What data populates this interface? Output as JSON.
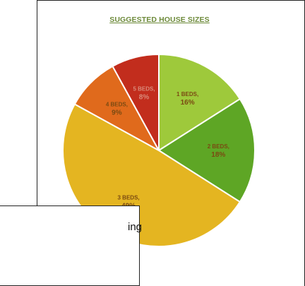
{
  "chart_data": {
    "type": "pie",
    "title": "SUGGESTED HOUSE SIZES",
    "slices": [
      {
        "label": "1 BEDS,",
        "pct_label": "16%",
        "value": 16,
        "color": "#9ec93b"
      },
      {
        "label": "2 BEDS,",
        "pct_label": "18%",
        "value": 18,
        "color": "#5ea625"
      },
      {
        "label": "3 BEDS,",
        "pct_label": "49%",
        "value": 49,
        "color": "#e4b521"
      },
      {
        "label": "4 BEDS,",
        "pct_label": "9%",
        "value": 9,
        "color": "#e06a1c"
      },
      {
        "label": "5 BEDS,",
        "pct_label": "8%",
        "value": 8,
        "color": "#c22d1d"
      }
    ]
  },
  "side_box": {
    "text": "ing"
  }
}
